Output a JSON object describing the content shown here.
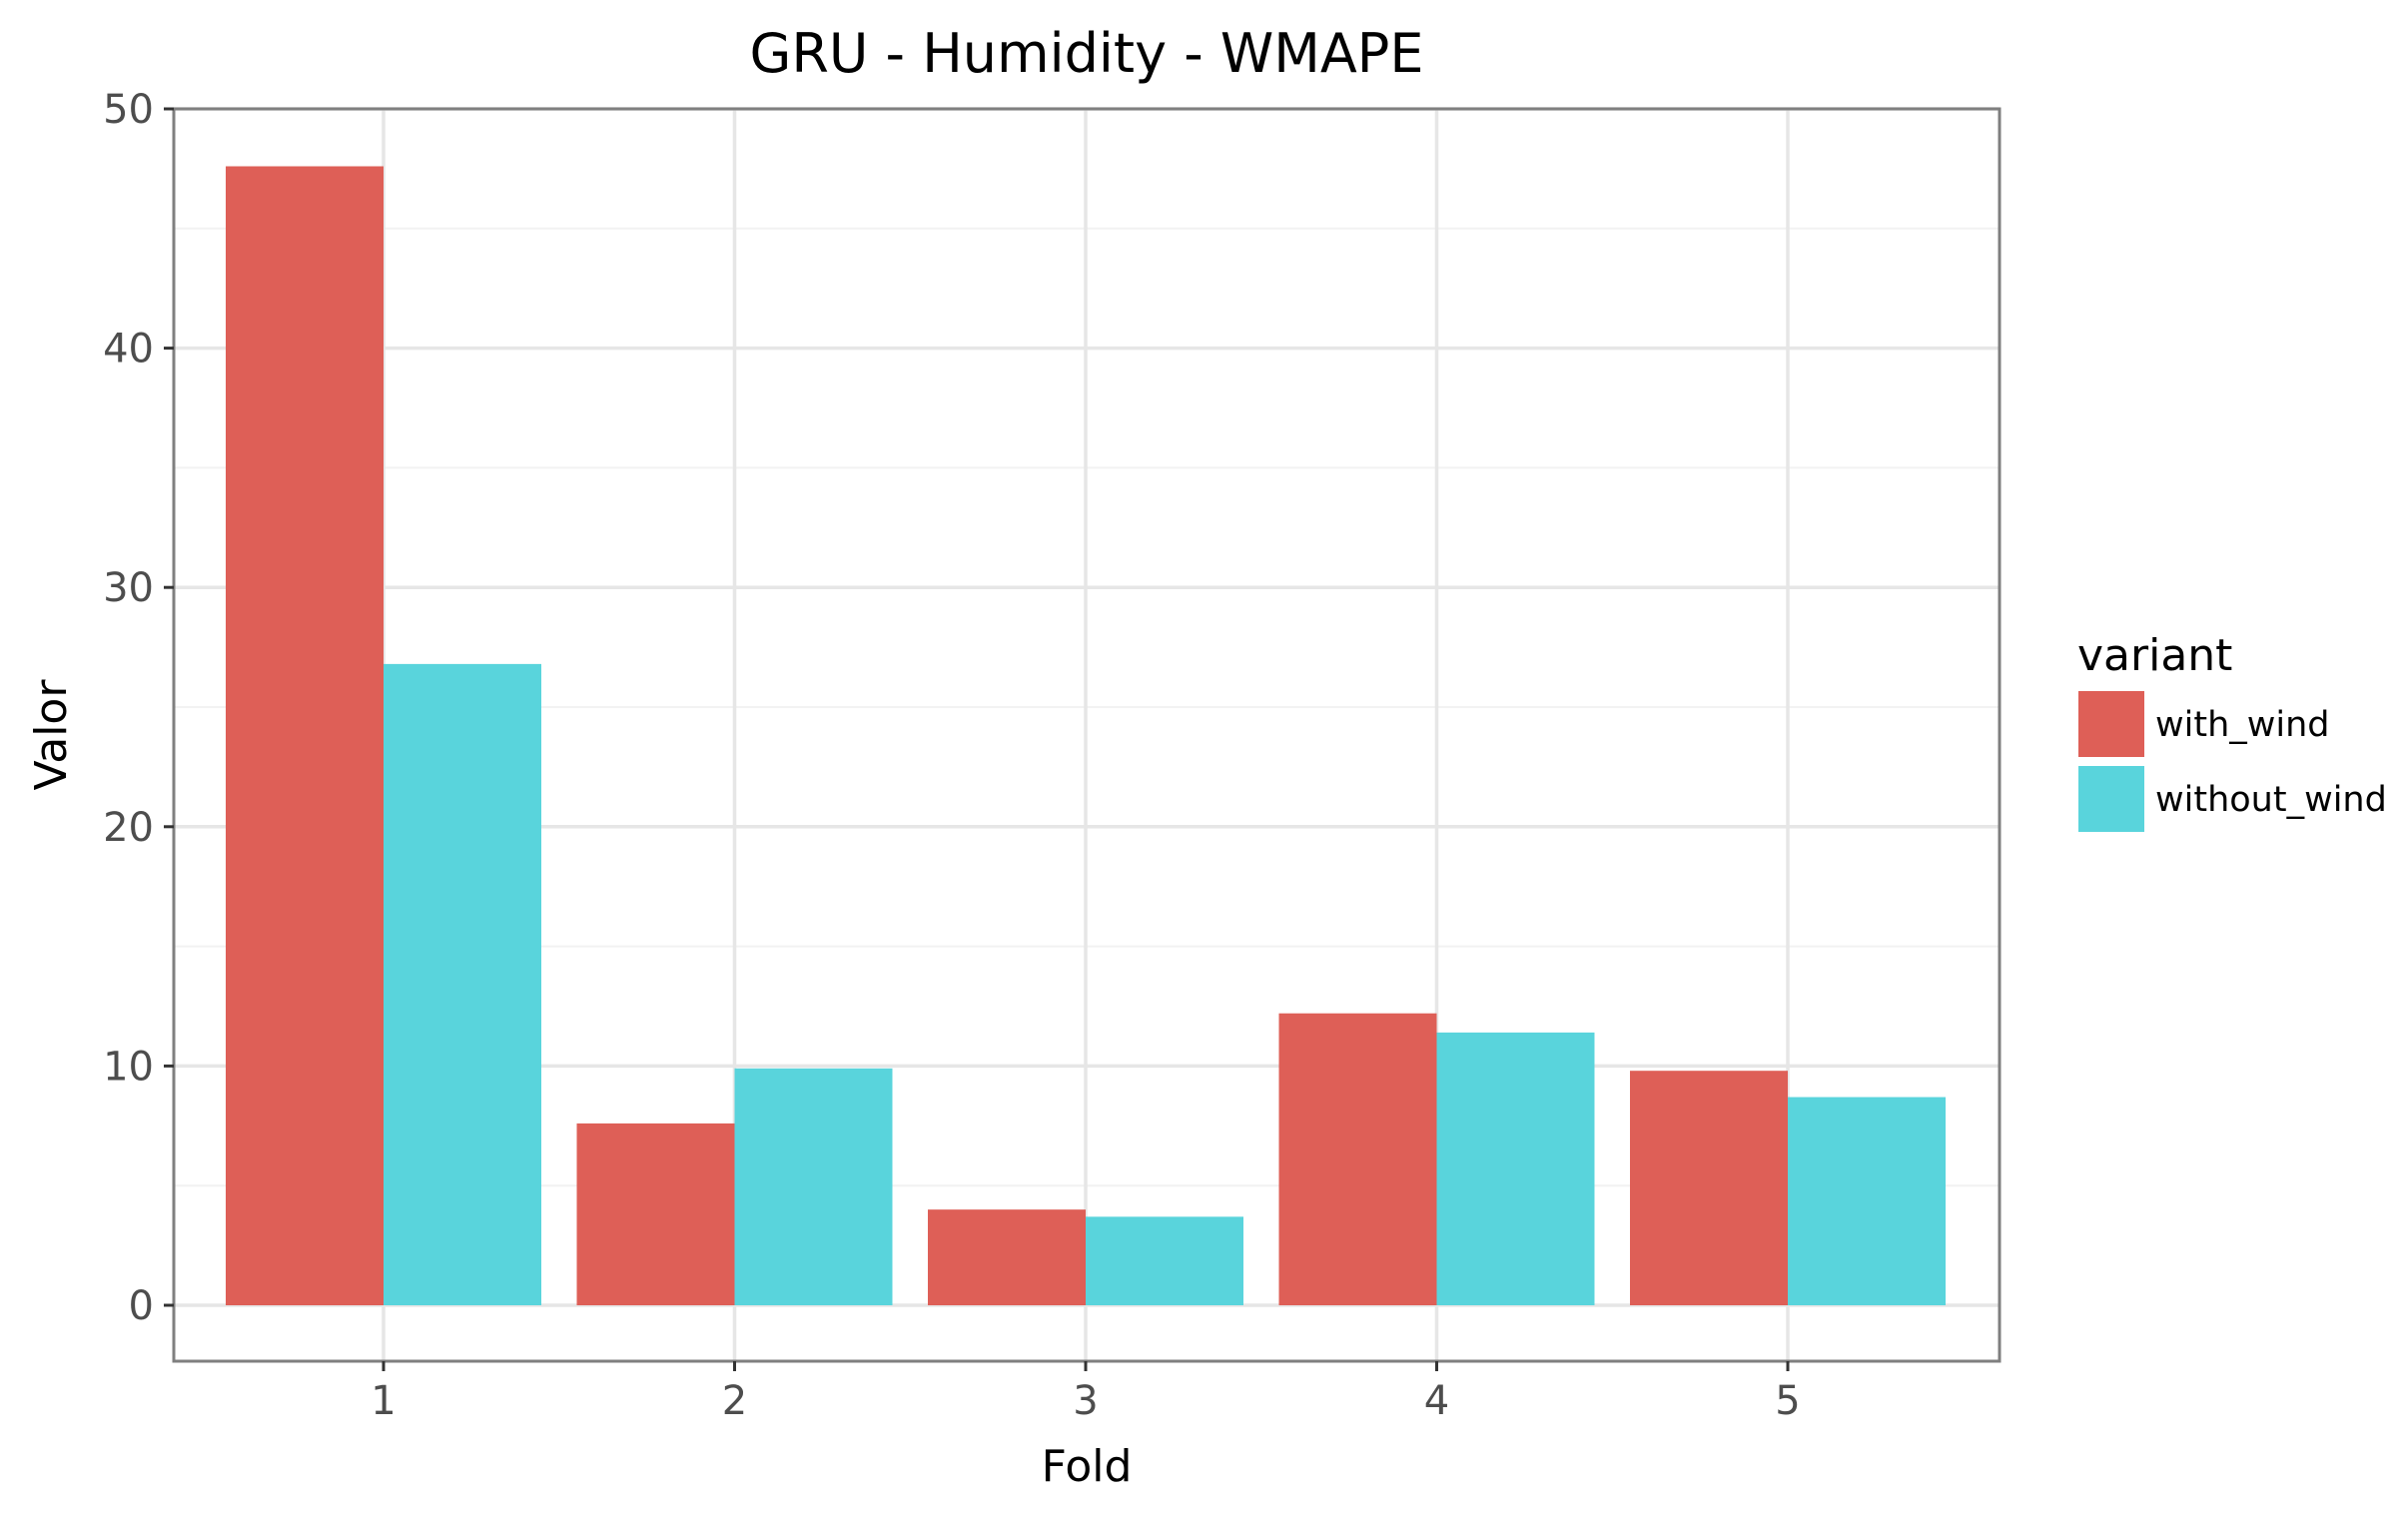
{
  "chart_data": {
    "type": "bar",
    "title": "GRU - Humidity - WMAPE",
    "xlabel": "Fold",
    "ylabel": "Valor",
    "categories": [
      "1",
      "2",
      "3",
      "4",
      "5"
    ],
    "series": [
      {
        "name": "with_wind",
        "color": "#de5f57",
        "values": [
          47.6,
          7.6,
          4.0,
          12.2,
          9.8
        ]
      },
      {
        "name": "without_wind",
        "color": "#59d4dc",
        "values": [
          26.8,
          9.9,
          3.7,
          11.4,
          8.7
        ]
      }
    ],
    "ylim": [
      0,
      50
    ],
    "yticks": [
      "0",
      "10",
      "20",
      "30",
      "40",
      "50"
    ],
    "grid": true,
    "legend": {
      "title": "variant",
      "position": "right"
    }
  }
}
